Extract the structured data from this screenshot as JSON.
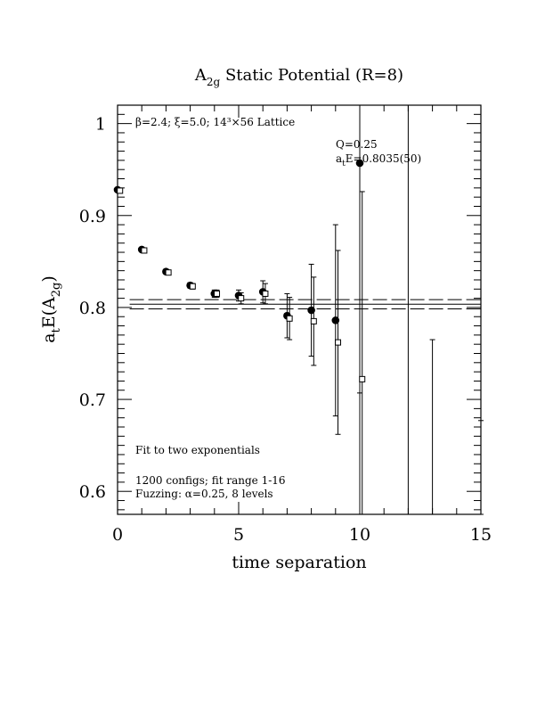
{
  "chart_data": {
    "type": "scatter",
    "title_main": "A",
    "title_sub": "2g",
    "title_rest": " Static Potential (R=8)",
    "xlabel": "time separation",
    "ylabel_a": "a",
    "ylabel_t": "t",
    "ylabel_e": "E(A",
    "ylabel_sub": "2g",
    "ylabel_close": ")",
    "xlim": [
      0,
      15
    ],
    "ylim": [
      0.575,
      1.02
    ],
    "xticks": [
      0,
      5,
      10,
      15
    ],
    "xtick_labels": [
      "0",
      "5",
      "10",
      "15"
    ],
    "yticks": [
      0.6,
      0.7,
      0.8,
      0.9,
      1.0
    ],
    "ytick_labels": [
      "0.6",
      "0.7",
      "0.8",
      "0.9",
      "1"
    ],
    "annotations": {
      "lattice": "β=2.4; ξ=5.0; 14³×56 Lattice",
      "q": "Q=0.25",
      "fit_a": "a",
      "fit_t": "t",
      "fit_rest": "E=0.8035(50)",
      "fit_desc": "Fit to two exponentials",
      "configs": "1200 configs; fit range 1-16",
      "fuzzing": "Fuzzing: α=0.25, 8 levels"
    },
    "fit": {
      "value": 0.8035,
      "error": 0.005,
      "tmin": 0.5,
      "tmax": 15
    },
    "series": [
      {
        "marker": "filled-circle",
        "x": [
          0,
          1,
          2,
          3,
          4,
          5,
          6,
          7,
          8,
          9,
          10
        ],
        "y": [
          0.928,
          0.863,
          0.839,
          0.824,
          0.815,
          0.813,
          0.817,
          0.791,
          0.797,
          0.786,
          0.957
        ],
        "err": [
          0.001,
          0.0015,
          0.002,
          0.003,
          0.004,
          0.006,
          0.012,
          0.024,
          0.05,
          0.104,
          0.25
        ]
      },
      {
        "marker": "open-square",
        "x": [
          0.1,
          1.1,
          2.1,
          3.1,
          4.1,
          5.1,
          6.1,
          7.1,
          8.1,
          9.1,
          10.1
        ],
        "y": [
          0.927,
          0.862,
          0.838,
          0.823,
          0.815,
          0.81,
          0.815,
          0.788,
          0.785,
          0.762,
          0.722
        ],
        "err": [
          0.002,
          0.002,
          0.002,
          0.003,
          0.004,
          0.006,
          0.011,
          0.023,
          0.048,
          0.1,
          0.204
        ]
      }
    ],
    "bare_error_bars": [
      {
        "x": 10,
        "lo": 0.575,
        "hi": 1.02
      },
      {
        "x": 12,
        "lo": 0.575,
        "hi": 1.02
      },
      {
        "x": 13,
        "lo": 0.575,
        "hi": 0.765
      },
      {
        "x": 15,
        "lo": 0.575,
        "hi": 0.677
      }
    ]
  }
}
